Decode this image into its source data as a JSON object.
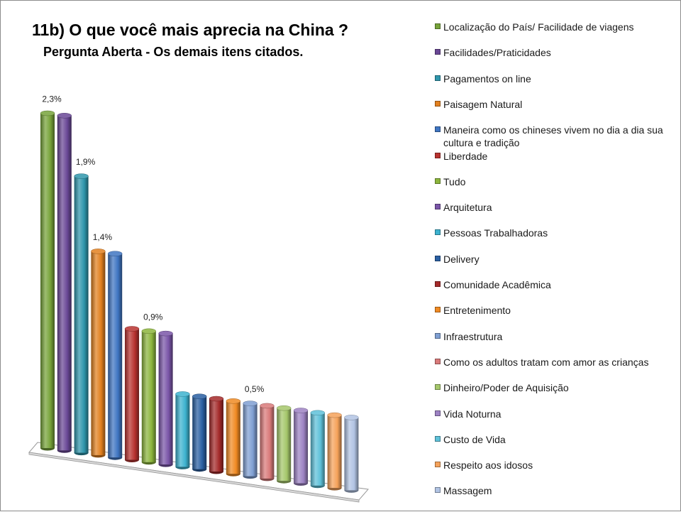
{
  "title": "11b) O que você mais aprecia na China ?",
  "subtitle": "Pergunta Aberta - Os demais itens citados.",
  "chart_data": {
    "type": "bar",
    "style": "3d-cylinder",
    "grid": false,
    "legend_position": "right",
    "categories": [
      "Localização do País/ Facilidade de viagens",
      "Facilidades/Praticidades",
      "Pagamentos on line",
      "Paisagem Natural",
      "Maneira como os chineses vivem no dia a dia sua cultura e tradição",
      "Liberdade",
      "Tudo",
      "Arquitetura",
      "Pessoas Trabalhadoras",
      "Delivery",
      "Comunidade Acadêmica",
      "Entretenimento",
      "Infraestrutura",
      "Como os adultos tratam com amor as crianças",
      "Dinheiro/Poder de Aquisição",
      "Vida Noturna",
      "Custo de Vida",
      "Respeito aos idosos",
      "Massagem"
    ],
    "values": [
      2.3,
      2.3,
      1.9,
      1.4,
      1.4,
      0.9,
      0.9,
      0.9,
      0.5,
      0.5,
      0.5,
      0.5,
      0.5,
      0.5,
      0.5,
      0.5,
      0.5,
      0.5,
      0.5
    ],
    "colors": [
      "#77a33a",
      "#6a4896",
      "#2f96ac",
      "#e2801f",
      "#3f75c2",
      "#b8322f",
      "#8cb53c",
      "#7a55a8",
      "#3db2cf",
      "#2a5fa2",
      "#a42a2a",
      "#f08a23",
      "#7f9fd2",
      "#d97a7a",
      "#a5c76b",
      "#9d82c3",
      "#5ec1d9",
      "#f5a25a",
      "#b1c3e3"
    ],
    "data_labels": [
      {
        "index": 0,
        "text": "2,3%"
      },
      {
        "index": 2,
        "text": "1,9%"
      },
      {
        "index": 3,
        "text": "1,4%"
      },
      {
        "index": 6,
        "text": "0,9%"
      },
      {
        "index": 12,
        "text": "0,5%"
      }
    ]
  }
}
